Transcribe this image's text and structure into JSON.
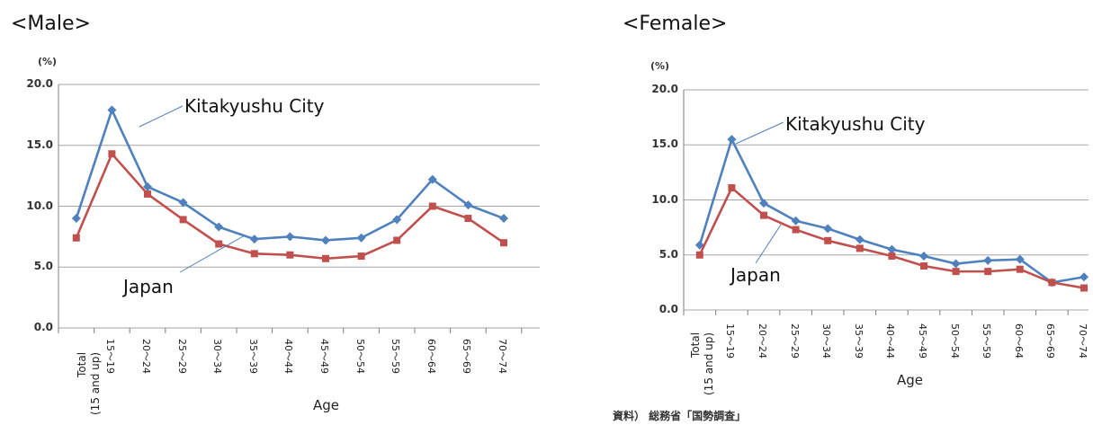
{
  "chart_data": [
    {
      "type": "line",
      "title": "<Male>",
      "unit_label": "(%)",
      "xlabel": "Age",
      "categories": [
        "Total\n(15 and up)",
        "15～19",
        "20～24",
        "25～29",
        "30～34",
        "35～39",
        "40～44",
        "45～49",
        "50～54",
        "55～59",
        "60～64",
        "65～69",
        "70～74"
      ],
      "yticks": [
        "0.0",
        "5.0",
        "10.0",
        "15.0",
        "20.0"
      ],
      "ylim": [
        0,
        20
      ],
      "grid": true,
      "series": [
        {
          "name": "Kitakyushu City",
          "color": "#4f81bd",
          "marker": "diamond",
          "values": [
            9.0,
            17.9,
            11.6,
            10.3,
            8.3,
            7.3,
            7.5,
            7.2,
            7.4,
            8.9,
            12.2,
            10.1,
            9.0
          ]
        },
        {
          "name": "Japan",
          "color": "#c0504d",
          "marker": "square",
          "values": [
            7.4,
            14.3,
            11.0,
            8.9,
            6.9,
            6.1,
            6.0,
            5.7,
            5.9,
            7.2,
            10.0,
            9.0,
            7.0
          ]
        }
      ]
    },
    {
      "type": "line",
      "title": "<Female>",
      "unit_label": "(%)",
      "xlabel": "Age",
      "categories": [
        "Total\n(15 and up)",
        "15～19",
        "20～24",
        "25～29",
        "30～34",
        "35～39",
        "40～44",
        "45～49",
        "50～54",
        "55～59",
        "60～64",
        "65～69",
        "70～74"
      ],
      "yticks": [
        "0.0",
        "5.0",
        "10.0",
        "15.0",
        "20.0"
      ],
      "ylim": [
        0,
        20
      ],
      "grid": true,
      "series": [
        {
          "name": "Kitakyushu City",
          "color": "#4f81bd",
          "marker": "diamond",
          "values": [
            5.9,
            15.5,
            9.7,
            8.1,
            7.4,
            6.4,
            5.5,
            4.9,
            4.2,
            4.5,
            4.6,
            2.5,
            3.0
          ]
        },
        {
          "name": "Japan",
          "color": "#c0504d",
          "marker": "square",
          "values": [
            5.0,
            11.1,
            8.6,
            7.3,
            6.3,
            5.6,
            4.9,
            4.0,
            3.5,
            3.5,
            3.7,
            2.5,
            2.0
          ]
        }
      ]
    }
  ],
  "source_note": "資料） 総務省「国勢調査」"
}
